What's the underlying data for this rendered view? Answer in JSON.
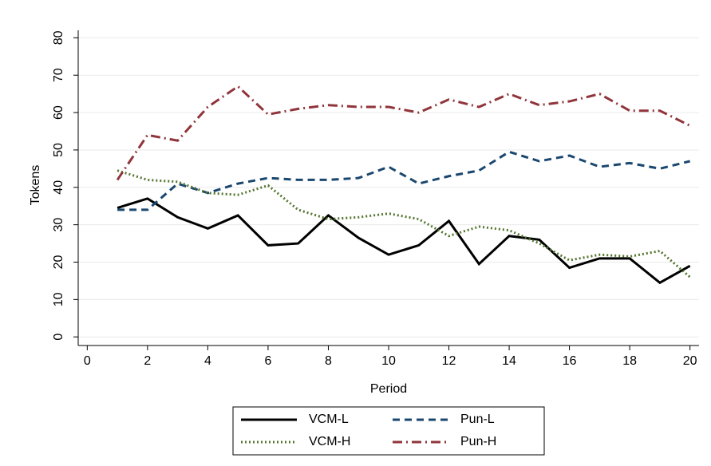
{
  "chart_data": {
    "type": "line",
    "xlabel": "Period",
    "ylabel": "Tokens",
    "x": [
      1,
      2,
      3,
      4,
      5,
      6,
      7,
      8,
      9,
      10,
      11,
      12,
      13,
      14,
      15,
      16,
      17,
      18,
      19,
      20
    ],
    "series": [
      {
        "name": "VCM-L",
        "color": "#000000",
        "dash": "solid",
        "values": [
          34.5,
          37,
          32,
          29,
          32.5,
          24.5,
          25,
          32.5,
          26.5,
          22,
          24.5,
          31,
          19.5,
          27,
          26,
          18.5,
          21,
          21,
          14.5,
          19
        ]
      },
      {
        "name": "Pun-L",
        "color": "#1a476f",
        "dash": "dash",
        "values": [
          34,
          34,
          41,
          38.5,
          41,
          42.5,
          42,
          42,
          42.5,
          45.5,
          41,
          43,
          44.5,
          49.5,
          47,
          48.5,
          45.5,
          46.5,
          45,
          47
        ]
      },
      {
        "name": "VCM-H",
        "color": "#55752f",
        "dash": "dot",
        "values": [
          44.5,
          42,
          41.5,
          38.5,
          38,
          40.5,
          34,
          31.5,
          32,
          33,
          31.5,
          27,
          29.5,
          28.5,
          25,
          20.5,
          22,
          21.5,
          23,
          16
        ]
      },
      {
        "name": "Pun-H",
        "color": "#90353b",
        "dash": "dashdot",
        "values": [
          42,
          54,
          52.5,
          61.5,
          67,
          59.5,
          61,
          62,
          61.5,
          61.5,
          60,
          63.5,
          61.5,
          65,
          62,
          63,
          65,
          60.5,
          60.5,
          56.5
        ]
      }
    ],
    "xlim": [
      -0.3,
      20.3
    ],
    "xticks": [
      0,
      2,
      4,
      6,
      8,
      10,
      12,
      14,
      16,
      18,
      20
    ],
    "ylim": [
      -2.3,
      82
    ],
    "yticks": [
      0,
      10,
      20,
      30,
      40,
      50,
      60,
      70,
      80
    ],
    "grid": true,
    "legend": "bottom"
  }
}
